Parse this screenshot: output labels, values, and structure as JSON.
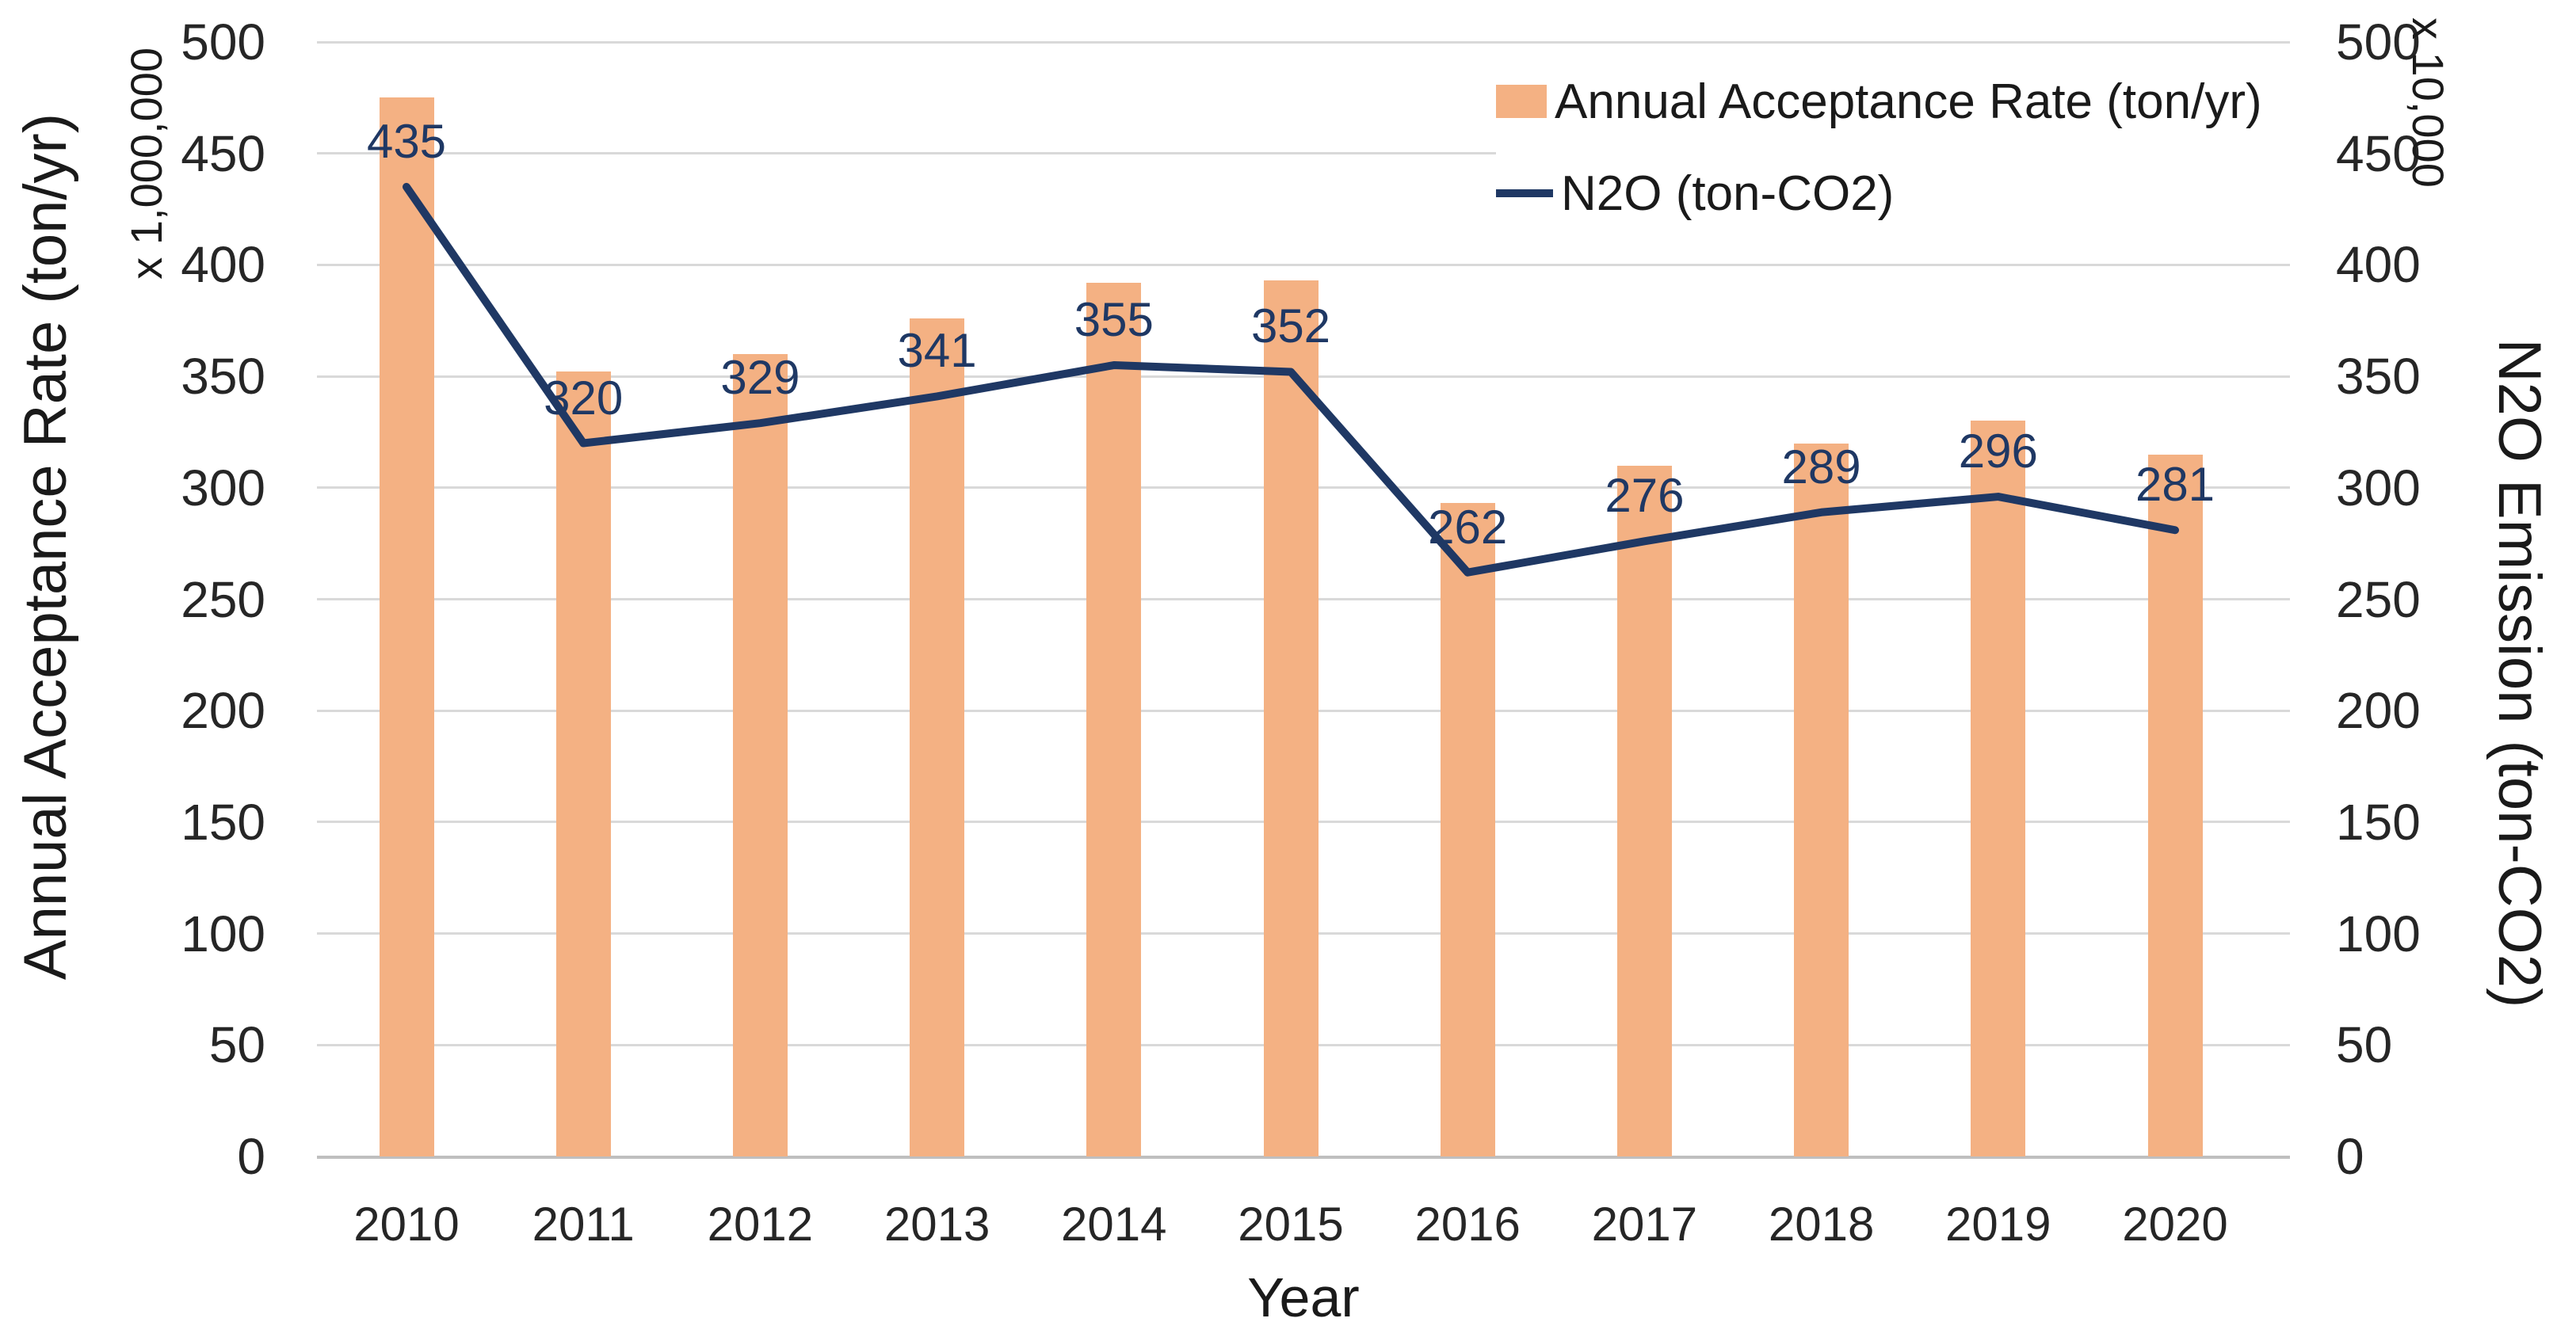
{
  "chart_data": {
    "type": "bar",
    "subtype": "combo-bar-line-dual-axis",
    "categories": [
      "2010",
      "2011",
      "2012",
      "2013",
      "2014",
      "2015",
      "2016",
      "2017",
      "2018",
      "2019",
      "2020"
    ],
    "series": [
      {
        "name": "Annual Acceptance Rate (ton/yr)",
        "type": "bar",
        "axis": "left",
        "color": "#f4b183",
        "values": [
          475,
          352,
          360,
          376,
          392,
          393,
          293,
          310,
          320,
          330,
          315
        ]
      },
      {
        "name": "N2O (ton-CO2)",
        "type": "line",
        "axis": "right",
        "color": "#1f3864",
        "values": [
          435,
          320,
          329,
          341,
          355,
          352,
          262,
          276,
          289,
          296,
          281
        ],
        "data_labels": [
          "435",
          "320",
          "329",
          "341",
          "355",
          "352",
          "262",
          "276",
          "289",
          "296",
          "281"
        ]
      }
    ],
    "left_axis": {
      "title": "Annual Acceptance Rate (ton/yr)",
      "multiplier": "x 1,000,000",
      "min": 0,
      "max": 500,
      "step": 50,
      "ticks": [
        500,
        450,
        400,
        350,
        300,
        250,
        200,
        150,
        100,
        50,
        0
      ]
    },
    "right_axis": {
      "title": "N2O Emission (ton-CO2)",
      "multiplier": "x 10,000",
      "min": 0,
      "max": 500,
      "step": 50,
      "ticks": [
        500,
        450,
        400,
        350,
        300,
        250,
        200,
        150,
        100,
        50,
        0
      ]
    },
    "x_axis": {
      "title": "Year"
    },
    "legend": {
      "position": "top-right"
    },
    "grid": "horizontal",
    "colors": {
      "bar": "#f4b183",
      "line": "#1f3864",
      "data_label": "#1f3864",
      "gridline": "#d9d9d9",
      "axis_line": "#bfbfbf",
      "text": "#262626",
      "background": "#ffffff"
    }
  }
}
